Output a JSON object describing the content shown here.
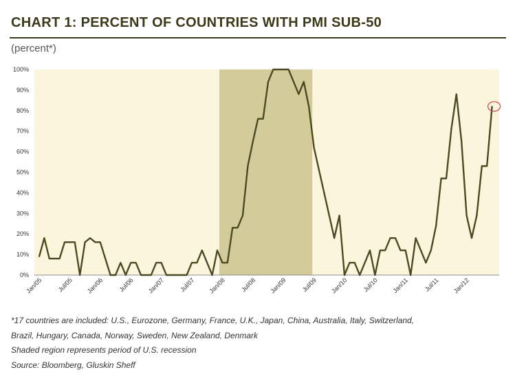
{
  "header": {
    "title": "CHART 1: PERCENT OF COUNTRIES WITH PMI SUB-50",
    "subtitle": "(percent*)"
  },
  "footnotes": [
    "*17 countries are included: U.S., Eurozone, Germany, France, U.K., Japan, China, Australia, Italy, Switzerland,",
    "Brazil, Hungary, Canada, Norway, Sweden, New Zealand, Denmark",
    "Shaded region represents period of U.S. recession",
    "Source: Bloomberg, Gluskin Sheff"
  ],
  "chart_data": {
    "type": "line",
    "title": "CHART 1: PERCENT OF COUNTRIES WITH PMI SUB-50",
    "ylabel": "(percent*)",
    "ylim": [
      0,
      100
    ],
    "y_ticks": [
      "0%",
      "10%",
      "20%",
      "30%",
      "40%",
      "50%",
      "60%",
      "70%",
      "80%",
      "90%",
      "100%"
    ],
    "x_start": "2005-01",
    "x_ticks": [
      "Jan/05",
      "Jul/05",
      "Jan/06",
      "Jul/06",
      "Jan/07",
      "Jul/07",
      "Jan/08",
      "Jul/08",
      "Jan/09",
      "Jul/09",
      "Jan/10",
      "Jul/10",
      "Jan/11",
      "Jul/11",
      "Jan/12"
    ],
    "series": [
      {
        "values": [
          9,
          18,
          8,
          8,
          8,
          16,
          16,
          16,
          0,
          16,
          18,
          16,
          16,
          8,
          0,
          0,
          6,
          0,
          6,
          6,
          0,
          0,
          0,
          6,
          6,
          0,
          0,
          0,
          0,
          0,
          6,
          6,
          12,
          6,
          0,
          12,
          6,
          6,
          23,
          23,
          29,
          53,
          65,
          76,
          76,
          94,
          100,
          100,
          100,
          100,
          94,
          88,
          94,
          82,
          62,
          51,
          40,
          29,
          18,
          29,
          0,
          6,
          6,
          0,
          6,
          12,
          0,
          12,
          12,
          18,
          18,
          12,
          12,
          0,
          18,
          12,
          6,
          12,
          24,
          47,
          47,
          71,
          88,
          65,
          29,
          18,
          29,
          53,
          53,
          82
        ],
        "color": "#4a4a22"
      }
    ],
    "recession_shading": {
      "start": "2007-12",
      "end": "2009-06",
      "color": "#d4cb9a"
    },
    "background_color": "#fbf5dd",
    "highlight_last_point": true,
    "highlight_color": "#d04040",
    "grid": false,
    "legend": "none"
  }
}
